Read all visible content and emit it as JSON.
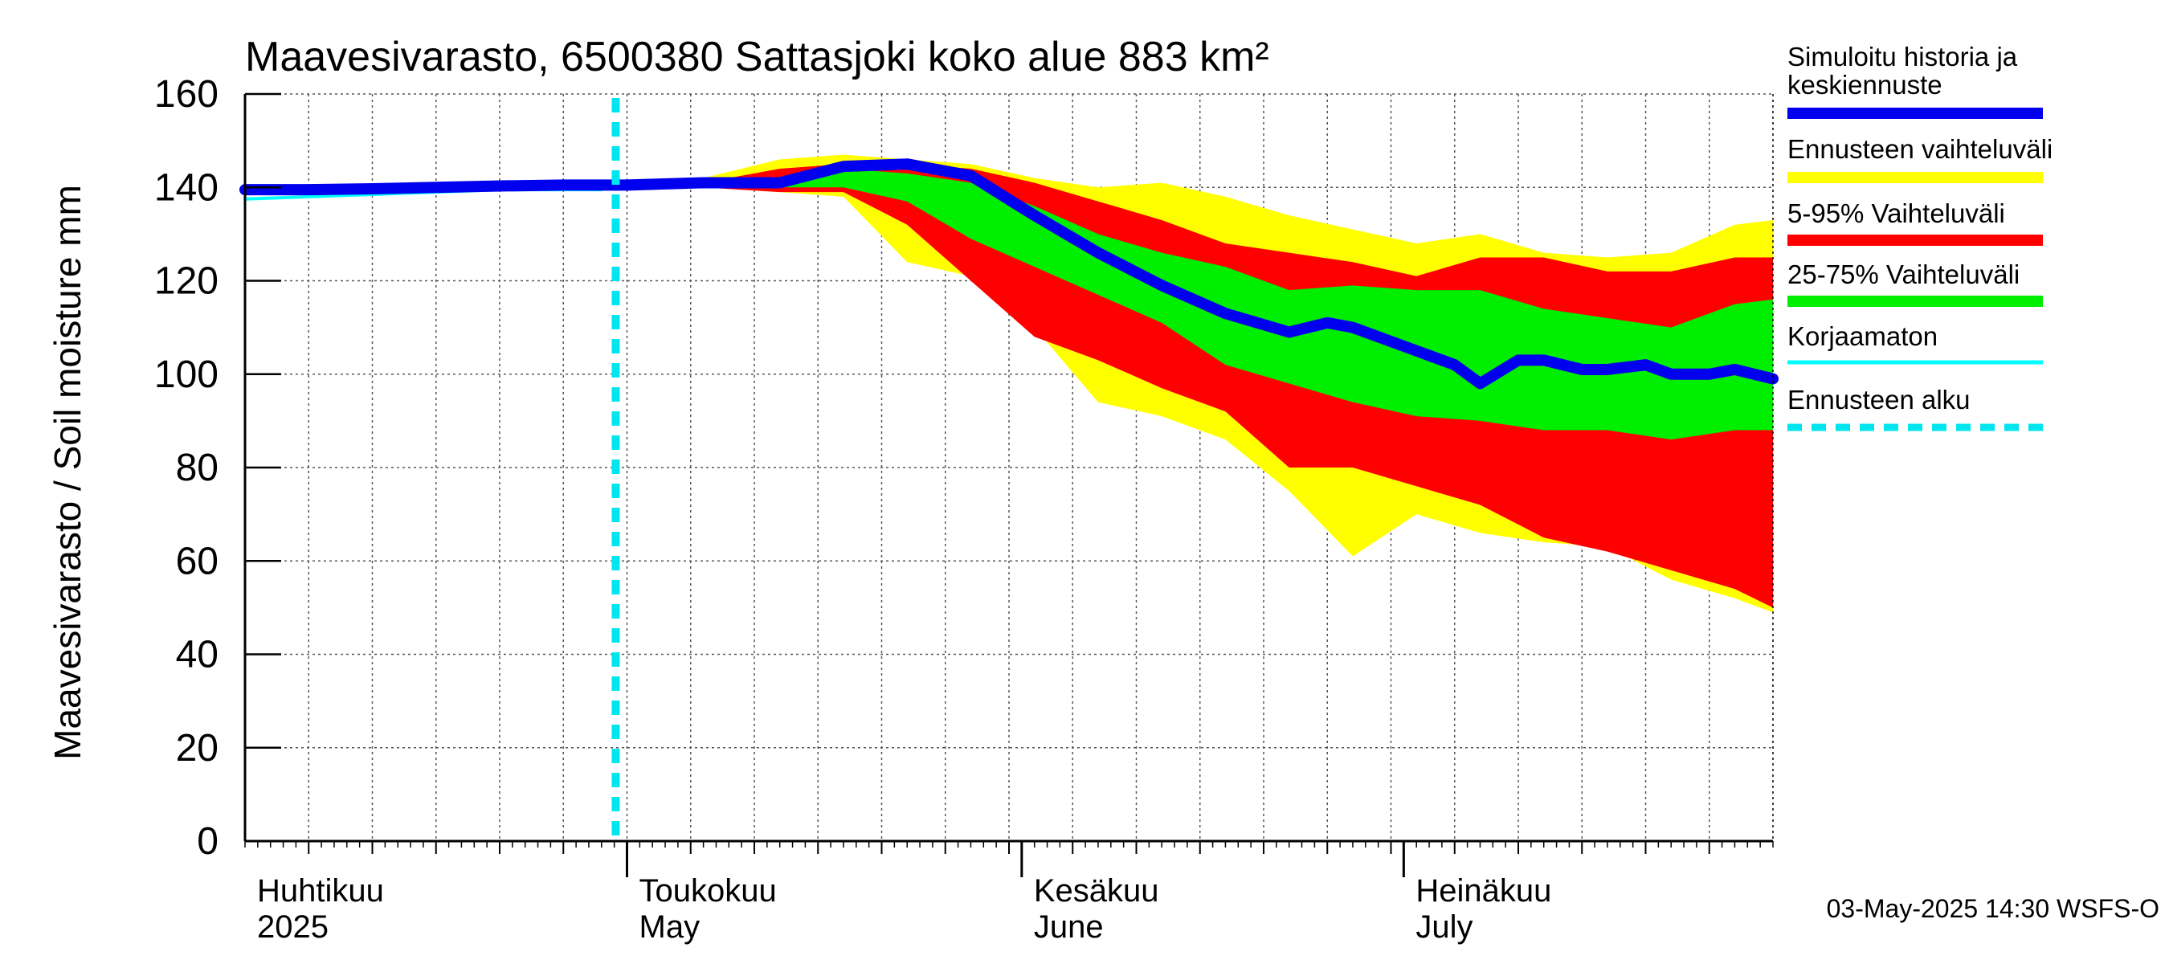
{
  "chart_data": {
    "type": "area",
    "title": "Maavesivarasto, 6500380 Sattasjoki koko alue 883 km²",
    "ylabel": "Maavesivarasto / Soil moisture   mm",
    "xlabel": "",
    "ylim": [
      0,
      160
    ],
    "yticks": [
      0,
      20,
      40,
      60,
      80,
      100,
      120,
      140,
      160
    ],
    "x_day_range": [
      0,
      120
    ],
    "x_unit": "days since 2025-04-01",
    "month_labels": [
      {
        "day": 0,
        "fi": "Huhtikuu",
        "en": "2025"
      },
      {
        "day": 30,
        "fi": "Toukokuu",
        "en": "May"
      },
      {
        "day": 61,
        "fi": "Kesäkuu",
        "en": "June"
      },
      {
        "day": 91,
        "fi": "Heinäkuu",
        "en": "July"
      }
    ],
    "forecast_start_day": 30,
    "grid": true,
    "legend_position": "right",
    "legend": [
      {
        "label": "Simuloitu historia ja keskiennuste",
        "color": "#0000ee"
      },
      {
        "label": "Ennusteen vaihteluväli",
        "color": "#ffff00"
      },
      {
        "label": "5-95% Vaihteluväli",
        "color": "#ff0000"
      },
      {
        "label": "25-75% Vaihteluväli",
        "color": "#00ee00"
      },
      {
        "label": "Korjaamaton",
        "color": "#00ffff"
      },
      {
        "label": "Ennusteen alku",
        "color": "#00e5ee"
      }
    ],
    "series": [
      {
        "name": "Ennusteen vaihteluväli",
        "color": "#ffff00",
        "x": [
          30,
          36,
          42,
          47,
          52,
          57,
          62,
          67,
          72,
          77,
          82,
          87,
          92,
          97,
          102,
          107,
          112,
          117,
          120
        ],
        "upper": [
          141,
          142,
          146,
          147,
          146,
          145,
          142,
          140,
          141,
          138,
          134,
          131,
          128,
          130,
          126,
          125,
          126,
          132,
          133
        ],
        "lower": [
          140,
          140,
          139,
          138,
          124,
          121,
          110,
          94,
          91,
          86,
          75,
          61,
          70,
          66,
          64,
          63,
          56,
          52,
          49
        ]
      },
      {
        "name": "5-95% Vaihteluväli",
        "color": "#ff0000",
        "x": [
          30,
          36,
          42,
          47,
          52,
          57,
          62,
          67,
          72,
          77,
          82,
          87,
          92,
          97,
          102,
          107,
          112,
          117,
          120
        ],
        "upper": [
          141,
          141,
          144,
          145,
          145,
          144,
          141,
          137,
          133,
          128,
          126,
          124,
          121,
          125,
          125,
          122,
          122,
          125,
          125
        ],
        "lower": [
          140,
          140,
          139,
          139,
          132,
          120,
          108,
          103,
          97,
          92,
          80,
          80,
          76,
          72,
          65,
          62,
          58,
          54,
          50
        ]
      },
      {
        "name": "25-75% Vaihteluväli",
        "color": "#00ee00",
        "x": [
          30,
          36,
          42,
          47,
          52,
          57,
          62,
          67,
          72,
          77,
          82,
          87,
          92,
          97,
          102,
          107,
          112,
          117,
          120
        ],
        "upper": [
          141,
          141,
          142,
          144,
          143,
          141,
          136,
          130,
          126,
          123,
          118,
          119,
          118,
          118,
          114,
          112,
          110,
          115,
          116
        ],
        "lower": [
          140,
          140,
          140,
          140,
          137,
          129,
          123,
          117,
          111,
          102,
          98,
          94,
          91,
          90,
          88,
          88,
          86,
          88,
          88
        ]
      },
      {
        "name": "Korjaamaton",
        "color": "#00ffff",
        "x": [
          0,
          10,
          20,
          28
        ],
        "values": [
          137.5,
          138.5,
          139.5,
          139.5
        ]
      },
      {
        "name": "Simuloitu historia ja keskiennuste",
        "color": "#0000ee",
        "x": [
          0,
          5,
          10,
          15,
          20,
          25,
          30,
          36,
          42,
          47,
          52,
          57,
          62,
          67,
          72,
          77,
          82,
          85,
          87,
          90,
          92,
          95,
          97,
          100,
          102,
          105,
          107,
          110,
          112,
          115,
          117,
          120
        ],
        "values": [
          139.5,
          139.5,
          139.7,
          140,
          140.3,
          140.5,
          140.5,
          141,
          141,
          144.5,
          145,
          142.5,
          134,
          126,
          119,
          113,
          109,
          111,
          110,
          107,
          105,
          102,
          98,
          103,
          103,
          101,
          101,
          102,
          100,
          100,
          101,
          99
        ]
      }
    ]
  },
  "footer": {
    "timestamp": "03-May-2025 14:30 WSFS-O"
  }
}
